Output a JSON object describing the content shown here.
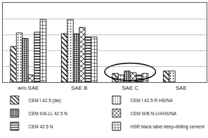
{
  "chart_data": {
    "type": "bar",
    "categories": [
      "w/o SAE",
      "SAE B",
      "SAE C",
      "SAE"
    ],
    "series": [
      {
        "name": "CEM I 42.5 (dw)",
        "color": "#000000",
        "marker": "diagonal",
        "values": [
          45,
          61,
          11,
          14
        ]
      },
      {
        "name": "CEM I 42.5 R-HS/NA",
        "color": "#000000",
        "marker": "dots",
        "values": [
          62,
          79,
          9,
          14
        ]
      },
      {
        "name": "CEM II/A-LL 42.5 N",
        "color": "#000000",
        "marker": "dense_dots",
        "values": [
          55,
          61,
          14,
          null
        ]
      },
      {
        "name": "CEM III/B N-LH/HS/NA",
        "color": "#000000",
        "marker": "checker",
        "values": [
          9,
          69,
          12,
          null
        ]
      },
      {
        "name": "CEM 42.5 N",
        "color": "#000000",
        "marker": "horizontal",
        "values": [
          63,
          57,
          9,
          null
        ]
      },
      {
        "name": "HSR black label deep-drilling cement",
        "color": "#000000",
        "marker": "grid",
        "values": [
          79,
          57,
          11,
          null
        ]
      }
    ],
    "ylim": [
      0,
      100
    ],
    "yticks": [
      0,
      20,
      40,
      60,
      80,
      100
    ],
    "grid": true,
    "tick_labels": "x",
    "legend": "bottom"
  }
}
